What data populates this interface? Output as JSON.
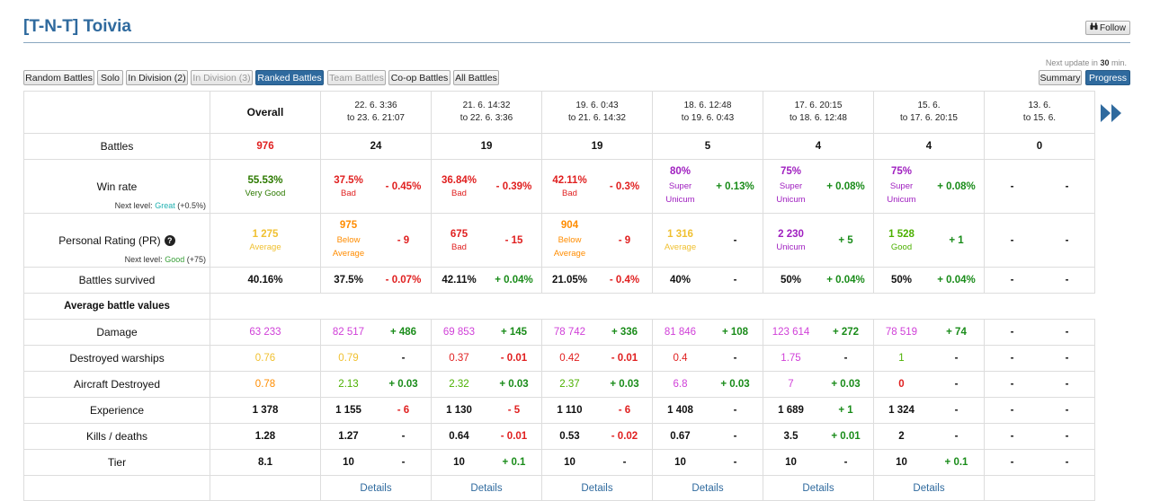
{
  "header": {
    "title": "[T-N-T] Toivia",
    "follow_label": "Follow"
  },
  "modes": [
    {
      "label": "Random Battles",
      "state": "normal"
    },
    {
      "label": "Solo",
      "state": "normal"
    },
    {
      "label": "In Division (2)",
      "state": "normal"
    },
    {
      "label": "In Division (3)",
      "state": "disabled"
    },
    {
      "label": "Ranked Battles",
      "state": "active"
    },
    {
      "label": "Team Battles",
      "state": "disabled"
    },
    {
      "label": "Co-op Battles",
      "state": "normal"
    },
    {
      "label": "All Battles",
      "state": "normal"
    }
  ],
  "next_update": {
    "prefix": "Next update in",
    "value": "30",
    "suffix": "min."
  },
  "view": {
    "summary_label": "Summary",
    "progress_label": "Progress"
  },
  "colors": {
    "accent": "#2f6a9e",
    "bad": "#e02020",
    "good": "#1a8c1a",
    "unicum": "#a020c0",
    "super_unicum": "#d040d8"
  },
  "table": {
    "overall_label": "Overall",
    "periods": [
      {
        "line1": "22. 6. 3:36",
        "line2": "to 23. 6. 21:07"
      },
      {
        "line1": "21. 6. 14:32",
        "line2": "to 22. 6. 3:36"
      },
      {
        "line1": "19. 6. 0:43",
        "line2": "to 21. 6. 14:32"
      },
      {
        "line1": "18. 6. 12:48",
        "line2": "to 19. 6. 0:43"
      },
      {
        "line1": "17. 6. 20:15",
        "line2": "to 18. 6. 12:48"
      },
      {
        "line1": "15. 6.",
        "line2": "to 17. 6. 20:15"
      },
      {
        "line1": "13. 6.",
        "line2": "to 15. 6."
      }
    ],
    "battles": {
      "label": "Battles",
      "overall": "976",
      "periods": [
        "24",
        "19",
        "19",
        "5",
        "4",
        "4",
        "0"
      ]
    },
    "winrate": {
      "label": "Win rate",
      "next_level_prefix": "Next level:",
      "next_level_name": "Great",
      "next_level_delta": "(+0.5%)",
      "overall": {
        "value": "55.53%",
        "rating": "Very Good"
      },
      "periods": [
        {
          "value": "37.5%",
          "rating": "Bad",
          "delta": "- 0.45%"
        },
        {
          "value": "36.84%",
          "rating": "Bad",
          "delta": "- 0.39%"
        },
        {
          "value": "42.11%",
          "rating": "Bad",
          "delta": "- 0.3%"
        },
        {
          "value": "80%",
          "rating": "Super Unicum",
          "delta": "+ 0.13%"
        },
        {
          "value": "75%",
          "rating": "Super Unicum",
          "delta": "+ 0.08%"
        },
        {
          "value": "75%",
          "rating": "Super Unicum",
          "delta": "+ 0.08%"
        },
        {
          "value": "-",
          "rating": "",
          "delta": "-"
        }
      ]
    },
    "pr": {
      "label": "Personal Rating (PR)",
      "next_level_prefix": "Next level:",
      "next_level_name": "Good",
      "next_level_delta": "(+75)",
      "overall": {
        "value": "1 275",
        "rating": "Average"
      },
      "periods": [
        {
          "value": "975",
          "rating": "Below Average",
          "delta": "- 9"
        },
        {
          "value": "675",
          "rating": "Bad",
          "delta": "- 15"
        },
        {
          "value": "904",
          "rating": "Below Average",
          "delta": "- 9"
        },
        {
          "value": "1 316",
          "rating": "Average",
          "delta": "-"
        },
        {
          "value": "2 230",
          "rating": "Unicum",
          "delta": "+ 5"
        },
        {
          "value": "1 528",
          "rating": "Good",
          "delta": "+ 1"
        },
        {
          "value": "-",
          "rating": "",
          "delta": "-"
        }
      ]
    },
    "survived": {
      "label": "Battles survived",
      "overall": "40.16%",
      "periods": [
        {
          "value": "37.5%",
          "delta": "- 0.07%"
        },
        {
          "value": "42.11%",
          "delta": "+ 0.04%"
        },
        {
          "value": "21.05%",
          "delta": "- 0.4%"
        },
        {
          "value": "40%",
          "delta": "-"
        },
        {
          "value": "50%",
          "delta": "+ 0.04%"
        },
        {
          "value": "50%",
          "delta": "+ 0.04%"
        },
        {
          "value": "-",
          "delta": "-"
        }
      ]
    },
    "avg_label": "Average battle values",
    "damage": {
      "label": "Damage",
      "overall": "63 233",
      "periods": [
        {
          "value": "82 517",
          "delta": "+ 486"
        },
        {
          "value": "69 853",
          "delta": "+ 145"
        },
        {
          "value": "78 742",
          "delta": "+ 336"
        },
        {
          "value": "81 846",
          "delta": "+ 108"
        },
        {
          "value": "123 614",
          "delta": "+ 272"
        },
        {
          "value": "78 519",
          "delta": "+ 74"
        },
        {
          "value": "-",
          "delta": "-"
        }
      ]
    },
    "destroyed": {
      "label": "Destroyed warships",
      "overall": "0.76",
      "periods": [
        {
          "value": "0.79",
          "delta": "-"
        },
        {
          "value": "0.37",
          "delta": "- 0.01"
        },
        {
          "value": "0.42",
          "delta": "- 0.01"
        },
        {
          "value": "0.4",
          "delta": "-"
        },
        {
          "value": "1.75",
          "delta": "-"
        },
        {
          "value": "1",
          "delta": "-"
        },
        {
          "value": "-",
          "delta": "-"
        }
      ]
    },
    "aircraft": {
      "label": "Aircraft Destroyed",
      "overall": "0.78",
      "periods": [
        {
          "value": "2.13",
          "delta": "+ 0.03"
        },
        {
          "value": "2.32",
          "delta": "+ 0.03"
        },
        {
          "value": "2.37",
          "delta": "+ 0.03"
        },
        {
          "value": "6.8",
          "delta": "+ 0.03"
        },
        {
          "value": "7",
          "delta": "+ 0.03"
        },
        {
          "value": "0",
          "delta": "-"
        },
        {
          "value": "-",
          "delta": "-"
        }
      ]
    },
    "experience": {
      "label": "Experience",
      "overall": "1 378",
      "periods": [
        {
          "value": "1 155",
          "delta": "- 6"
        },
        {
          "value": "1 130",
          "delta": "- 5"
        },
        {
          "value": "1 110",
          "delta": "- 6"
        },
        {
          "value": "1 408",
          "delta": "-"
        },
        {
          "value": "1 689",
          "delta": "+ 1"
        },
        {
          "value": "1 324",
          "delta": "-"
        },
        {
          "value": "-",
          "delta": "-"
        }
      ]
    },
    "kd": {
      "label": "Kills / deaths",
      "overall": "1.28",
      "periods": [
        {
          "value": "1.27",
          "delta": "-"
        },
        {
          "value": "0.64",
          "delta": "- 0.01"
        },
        {
          "value": "0.53",
          "delta": "- 0.02"
        },
        {
          "value": "0.67",
          "delta": "-"
        },
        {
          "value": "3.5",
          "delta": "+ 0.01"
        },
        {
          "value": "2",
          "delta": "-"
        },
        {
          "value": "-",
          "delta": "-"
        }
      ]
    },
    "tier": {
      "label": "Tier",
      "overall": "8.1",
      "periods": [
        {
          "value": "10",
          "delta": "-"
        },
        {
          "value": "10",
          "delta": "+ 0.1"
        },
        {
          "value": "10",
          "delta": "-"
        },
        {
          "value": "10",
          "delta": "-"
        },
        {
          "value": "10",
          "delta": "-"
        },
        {
          "value": "10",
          "delta": "+ 0.1"
        },
        {
          "value": "-",
          "delta": "-"
        }
      ]
    },
    "details_label": "Details"
  }
}
